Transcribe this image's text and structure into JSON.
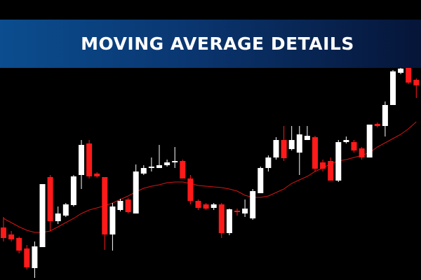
{
  "chart_data": {
    "type": "candlestick",
    "title": "MOVING AVERAGE DETAILS",
    "ylim": [
      0,
      400
    ],
    "up_color": "#ffffff",
    "down_color": "#ff1a1a",
    "open": [
      75,
      65,
      60,
      45,
      17,
      47,
      147,
      84,
      92,
      107,
      150,
      195,
      152,
      147,
      65,
      100,
      115,
      95,
      152,
      160,
      160,
      164,
      168,
      170,
      145,
      113,
      108,
      103,
      108,
      67,
      99,
      95,
      88,
      124,
      160,
      175,
      200,
      187,
      182,
      200,
      204,
      168,
      170,
      142,
      197,
      197,
      188,
      175,
      223,
      220,
      250,
      296,
      303,
      286
    ],
    "high": [
      90,
      70,
      62,
      50,
      55,
      137,
      150,
      105,
      110,
      150,
      200,
      200,
      154,
      147,
      110,
      116,
      117,
      165,
      164,
      175,
      193,
      172,
      190,
      172,
      150,
      115,
      110,
      110,
      110,
      102,
      102,
      115,
      130,
      162,
      178,
      204,
      220,
      220,
      220,
      220,
      206,
      172,
      175,
      200,
      205,
      200,
      190,
      222,
      225,
      255,
      300,
      304,
      305,
      288
    ],
    "low": [
      55,
      55,
      38,
      15,
      3,
      47,
      70,
      80,
      90,
      105,
      130,
      145,
      146,
      43,
      42,
      98,
      95,
      95,
      150,
      155,
      160,
      162,
      160,
      145,
      108,
      100,
      100,
      100,
      60,
      64,
      92,
      90,
      86,
      124,
      155,
      172,
      170,
      185,
      150,
      200,
      155,
      155,
      142,
      140,
      195,
      182,
      172,
      175,
      218,
      205,
      250,
      294,
      280,
      260
    ],
    "close": [
      60,
      58,
      42,
      18,
      48,
      137,
      84,
      95,
      108,
      148,
      193,
      148,
      148,
      65,
      105,
      113,
      97,
      155,
      160,
      162,
      164,
      168,
      170,
      145,
      113,
      103,
      102,
      108,
      67,
      101,
      97,
      102,
      127,
      160,
      175,
      200,
      174,
      200,
      208,
      206,
      159,
      159,
      142,
      197,
      200,
      185,
      175,
      222,
      220,
      250,
      298,
      302,
      282,
      278
    ],
    "moving_average": {
      "color": "#d81414",
      "values": [
        88,
        82,
        76,
        71,
        68,
        68,
        70,
        76,
        82,
        88,
        95,
        100,
        103,
        106,
        110,
        115,
        120,
        126,
        131,
        134,
        136,
        139,
        140,
        140,
        138,
        135,
        134,
        133,
        132,
        130,
        127,
        121,
        118,
        118,
        120,
        125,
        130,
        138,
        143,
        148,
        155,
        160,
        166,
        170,
        172,
        175,
        178,
        182,
        190,
        196,
        202,
        208,
        216,
        226
      ]
    }
  }
}
